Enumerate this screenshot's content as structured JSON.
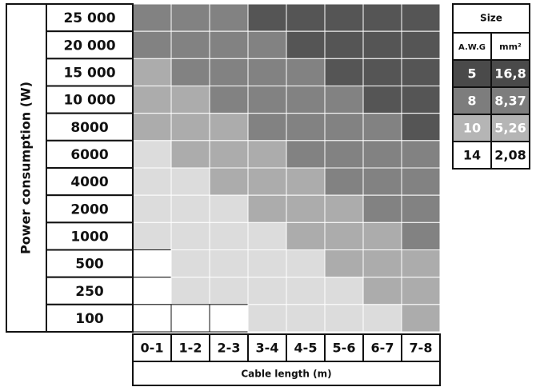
{
  "y_axis_title": "Power consumption (W)",
  "rows": [
    "25 000",
    "20 000",
    "15 000",
    "10 000",
    "8000",
    "6000",
    "4000",
    "2000",
    "1000",
    "500",
    "250",
    "100"
  ],
  "columns": [
    "0-1",
    "1-2",
    "2-3",
    "3-4",
    "4-5",
    "5-6",
    "6-7",
    "7-8"
  ],
  "x_axis_title": "Cable length (m)",
  "cells": [
    [
      8,
      8,
      8,
      5,
      5,
      5,
      5,
      5
    ],
    [
      8,
      8,
      8,
      8,
      5,
      5,
      5,
      5
    ],
    [
      10,
      8,
      8,
      8,
      8,
      5,
      5,
      5
    ],
    [
      10,
      10,
      8,
      8,
      8,
      8,
      5,
      5
    ],
    [
      10,
      10,
      10,
      8,
      8,
      8,
      8,
      5
    ],
    [
      14,
      10,
      10,
      10,
      8,
      8,
      8,
      8
    ],
    [
      14,
      14,
      10,
      10,
      10,
      8,
      8,
      8
    ],
    [
      14,
      14,
      14,
      10,
      10,
      10,
      8,
      8
    ],
    [
      14,
      14,
      14,
      14,
      10,
      10,
      10,
      8
    ],
    [
      null,
      14,
      14,
      14,
      14,
      10,
      10,
      10
    ],
    [
      null,
      14,
      14,
      14,
      14,
      14,
      10,
      10
    ],
    [
      null,
      null,
      null,
      14,
      14,
      14,
      14,
      10
    ]
  ],
  "shades": {
    "5": "#555555",
    "8": "#828282",
    "10": "#acacac",
    "14": "#dcdcdc"
  },
  "legend": {
    "title": "Size",
    "headers": [
      "A.W.G",
      "mm²"
    ],
    "rows": [
      [
        "5",
        "16,8"
      ],
      [
        "8",
        "8,37"
      ],
      [
        "10",
        "5,26"
      ],
      [
        "14",
        "2,08"
      ]
    ],
    "colors": [
      "#4a4a4a",
      "#7d7d7d",
      "#b5b5b5",
      "#ffffff"
    ]
  }
}
